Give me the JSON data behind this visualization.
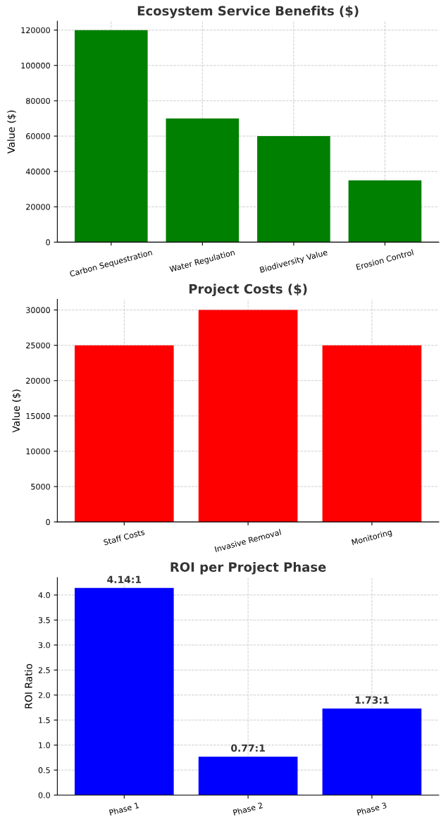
{
  "chart_data": [
    {
      "type": "bar",
      "title": "Ecosystem Service Benefits ($)",
      "ylabel": "Value ($)",
      "categories": [
        "Carbon Sequestration",
        "Water Regulation",
        "Biodiversity Value",
        "Erosion Control"
      ],
      "values": [
        120000,
        70000,
        60000,
        35000
      ],
      "color": "#008000",
      "ylim": [
        0,
        125000
      ],
      "yticks": [
        0,
        20000,
        40000,
        60000,
        80000,
        100000,
        120000
      ],
      "grid": true
    },
    {
      "type": "bar",
      "title": "Project Costs ($)",
      "ylabel": "Value ($)",
      "categories": [
        "Staff Costs",
        "Invasive Removal",
        "Monitoring"
      ],
      "values": [
        25000,
        30000,
        25000
      ],
      "color": "#ff0000",
      "ylim": [
        0,
        31500
      ],
      "yticks": [
        0,
        5000,
        10000,
        15000,
        20000,
        25000,
        30000
      ],
      "grid": true
    },
    {
      "type": "bar",
      "title": "ROI per Project Phase",
      "ylabel": "ROI Ratio",
      "categories": [
        "Phase 1",
        "Phase 2",
        "Phase 3"
      ],
      "values": [
        4.14,
        0.77,
        1.73
      ],
      "value_labels": [
        "4.14:1",
        "0.77:1",
        "1.73:1"
      ],
      "color": "#0000ff",
      "ylim": [
        0,
        4.35
      ],
      "yticks": [
        {
          "value": 0,
          "label": "0.0"
        },
        {
          "value": 0.5,
          "label": "0.5"
        },
        {
          "value": 1,
          "label": "1.0"
        },
        {
          "value": 1.5,
          "label": "1.5"
        },
        {
          "value": 2,
          "label": "2.0"
        },
        {
          "value": 2.5,
          "label": "2.5"
        },
        {
          "value": 3,
          "label": "3.0"
        },
        {
          "value": 3.5,
          "label": "3.5"
        },
        {
          "value": 4,
          "label": "4.0"
        }
      ],
      "grid": true
    }
  ]
}
